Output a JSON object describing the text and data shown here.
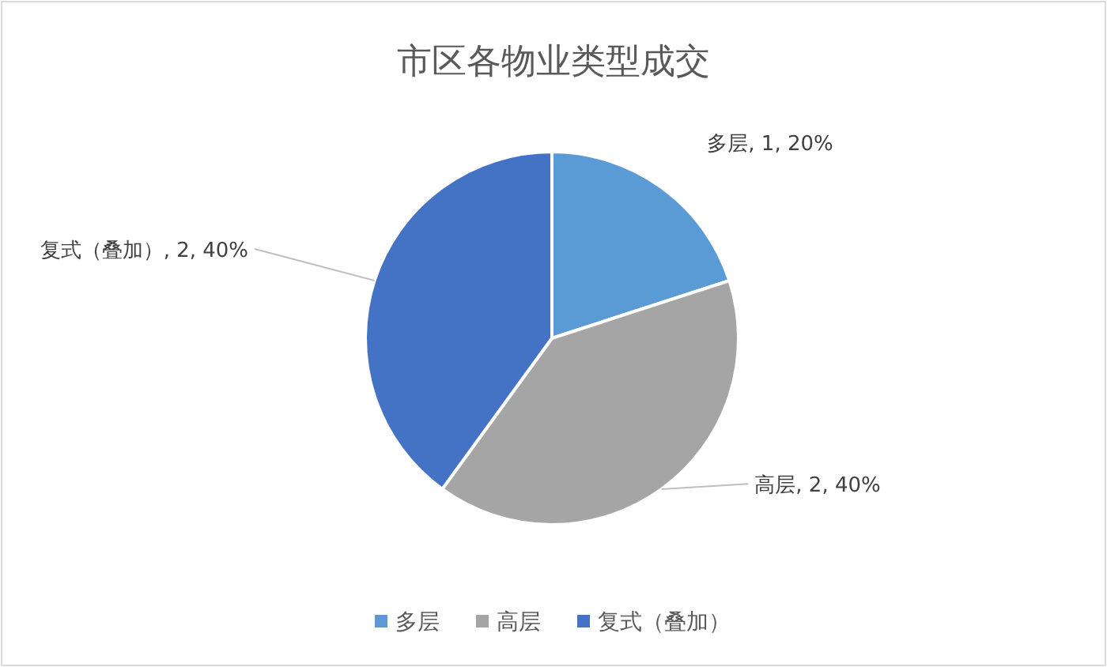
{
  "chart_data": {
    "type": "pie",
    "title": "市区各物业类型成交",
    "categories": [
      "多层",
      "高层",
      "复式（叠加）"
    ],
    "values": [
      1,
      2,
      2
    ],
    "colors": [
      "#5b9bd5",
      "#a5a5a5",
      "#4472c4"
    ],
    "value_labels": [
      "多层, 1, 20%",
      "高层, 2, 40%",
      "复式（叠加）, 2, 40%"
    ],
    "legend": "bottom"
  }
}
